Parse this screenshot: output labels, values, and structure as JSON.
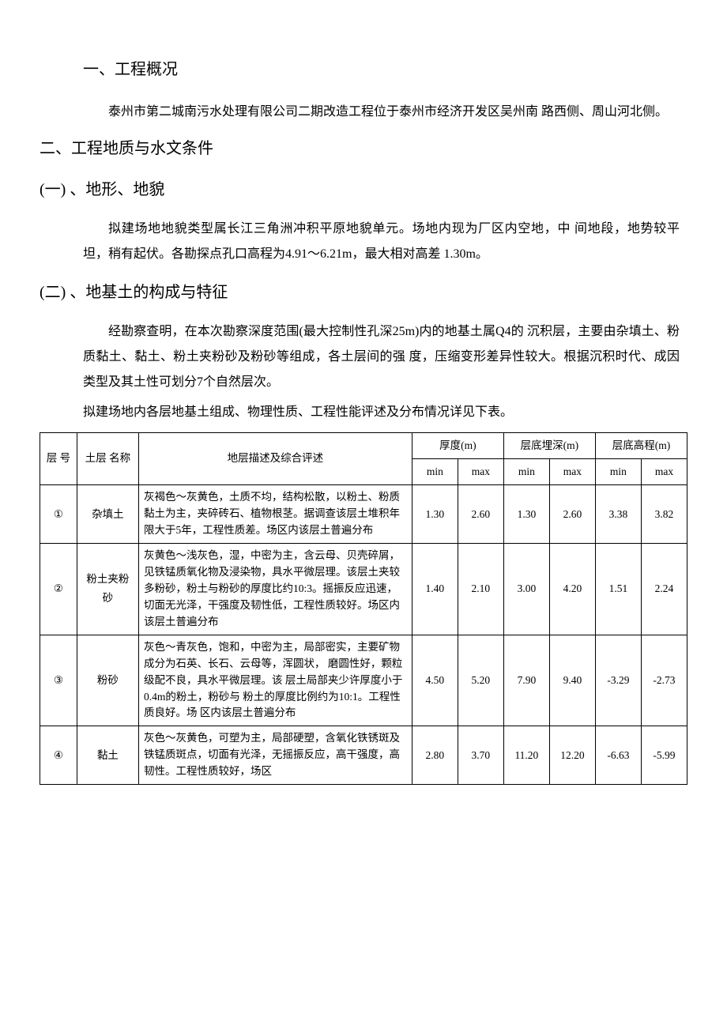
{
  "headings": {
    "h1": "一、工程概况",
    "h2": "二、工程地质与水文条件",
    "h2_1": "(一) 、地形、地貌",
    "h2_2": "(二) 、地基土的构成与特征"
  },
  "paragraphs": {
    "p1": "泰州市第二城南污水处理有限公司二期改造工程位于泰州市经济开发区吴州南 路西侧、周山河北侧。",
    "p2": "拟建场地地貌类型属长江三角洲冲积平原地貌单元。场地内现为厂区内空地，中 间地段，地势较平坦，稍有起伏。各勘探点孔口高程为4.91〜6.21m，最大相对高差 1.30m。",
    "p3": "经勘察查明，在本次勘察深度范围(最大控制性孔深25m)内的地基土属Q4的 沉积层，主要由杂填土、粉质黏土、黏土、粉土夹粉砂及粉砂等组成，各土层间的强 度，压缩变形差异性较大。根据沉积时代、成因类型及其土性可划分7个自然层次。",
    "table_intro": "拟建场地内各层地基土组成、物理性质、工程性能评述及分布情况详见下表。"
  },
  "table": {
    "headers": {
      "layer_no": "层 号",
      "layer_name": "土层 名称",
      "desc": "地层描述及综合评述",
      "thickness": "厚度(m)",
      "depth": "层底埋深(m)",
      "elevation": "层底高程(m)",
      "min": "min",
      "max": "max"
    },
    "rows": [
      {
        "layer_no": "①",
        "layer_name": "杂填土",
        "desc": "灰褐色〜灰黄色，土质不均，结构松散，以粉土、粉质黏土为主，夹碎砖石、植物根茎。据调查该层土堆积年限大于5年，工程性质差。场区内该层土普遍分布",
        "thickness_min": "1.30",
        "thickness_max": "2.60",
        "depth_min": "1.30",
        "depth_max": "2.60",
        "elev_min": "3.38",
        "elev_max": "3.82"
      },
      {
        "layer_no": "②",
        "layer_name": "粉土夹粉砂",
        "desc": "灰黄色〜浅灰色，湿，中密为主，含云母、贝壳碎屑，见铁锰质氧化物及浸染物，具水平微层理。该层土夹较多粉砂，粉土与粉砂的厚度比约10:3。摇振反应迅速，切面无光泽，干强度及韧性低，工程性质较好。场区内该层土普遍分布",
        "thickness_min": "1.40",
        "thickness_max": "2.10",
        "depth_min": "3.00",
        "depth_max": "4.20",
        "elev_min": "1.51",
        "elev_max": "2.24"
      },
      {
        "layer_no": "③",
        "layer_name": "粉砂",
        "desc": "灰色〜青灰色，饱和，中密为主，局部密实，主要矿物成分为石英、长石、云母等，浑圆状， 磨圆性好，颗粒级配不良，具水平微层理。该 层土局部夹少许厚度小于0.4m的粉土，粉砂与 粉土的厚度比例约为10:1。工程性质良好。场 区内该层土普遍分布",
        "thickness_min": "4.50",
        "thickness_max": "5.20",
        "depth_min": "7.90",
        "depth_max": "9.40",
        "elev_min": "-3.29",
        "elev_max": "-2.73"
      },
      {
        "layer_no": "④",
        "layer_name": "黏土",
        "desc": "灰色〜灰黄色，可塑为主，局部硬塑，含氧化铁锈斑及铁锰质斑点，切面有光泽，无摇振反应，高干强度，高韧性。工程性质较好，场区",
        "thickness_min": "2.80",
        "thickness_max": "3.70",
        "depth_min": "11.20",
        "depth_max": "12.20",
        "elev_min": "-6.63",
        "elev_max": "-5.99"
      }
    ]
  },
  "style": {
    "background_color": "#ffffff",
    "text_color": "#000000",
    "border_color": "#000000",
    "body_fontsize": 16,
    "heading_fontsize": 20,
    "table_fontsize": 13.5
  }
}
